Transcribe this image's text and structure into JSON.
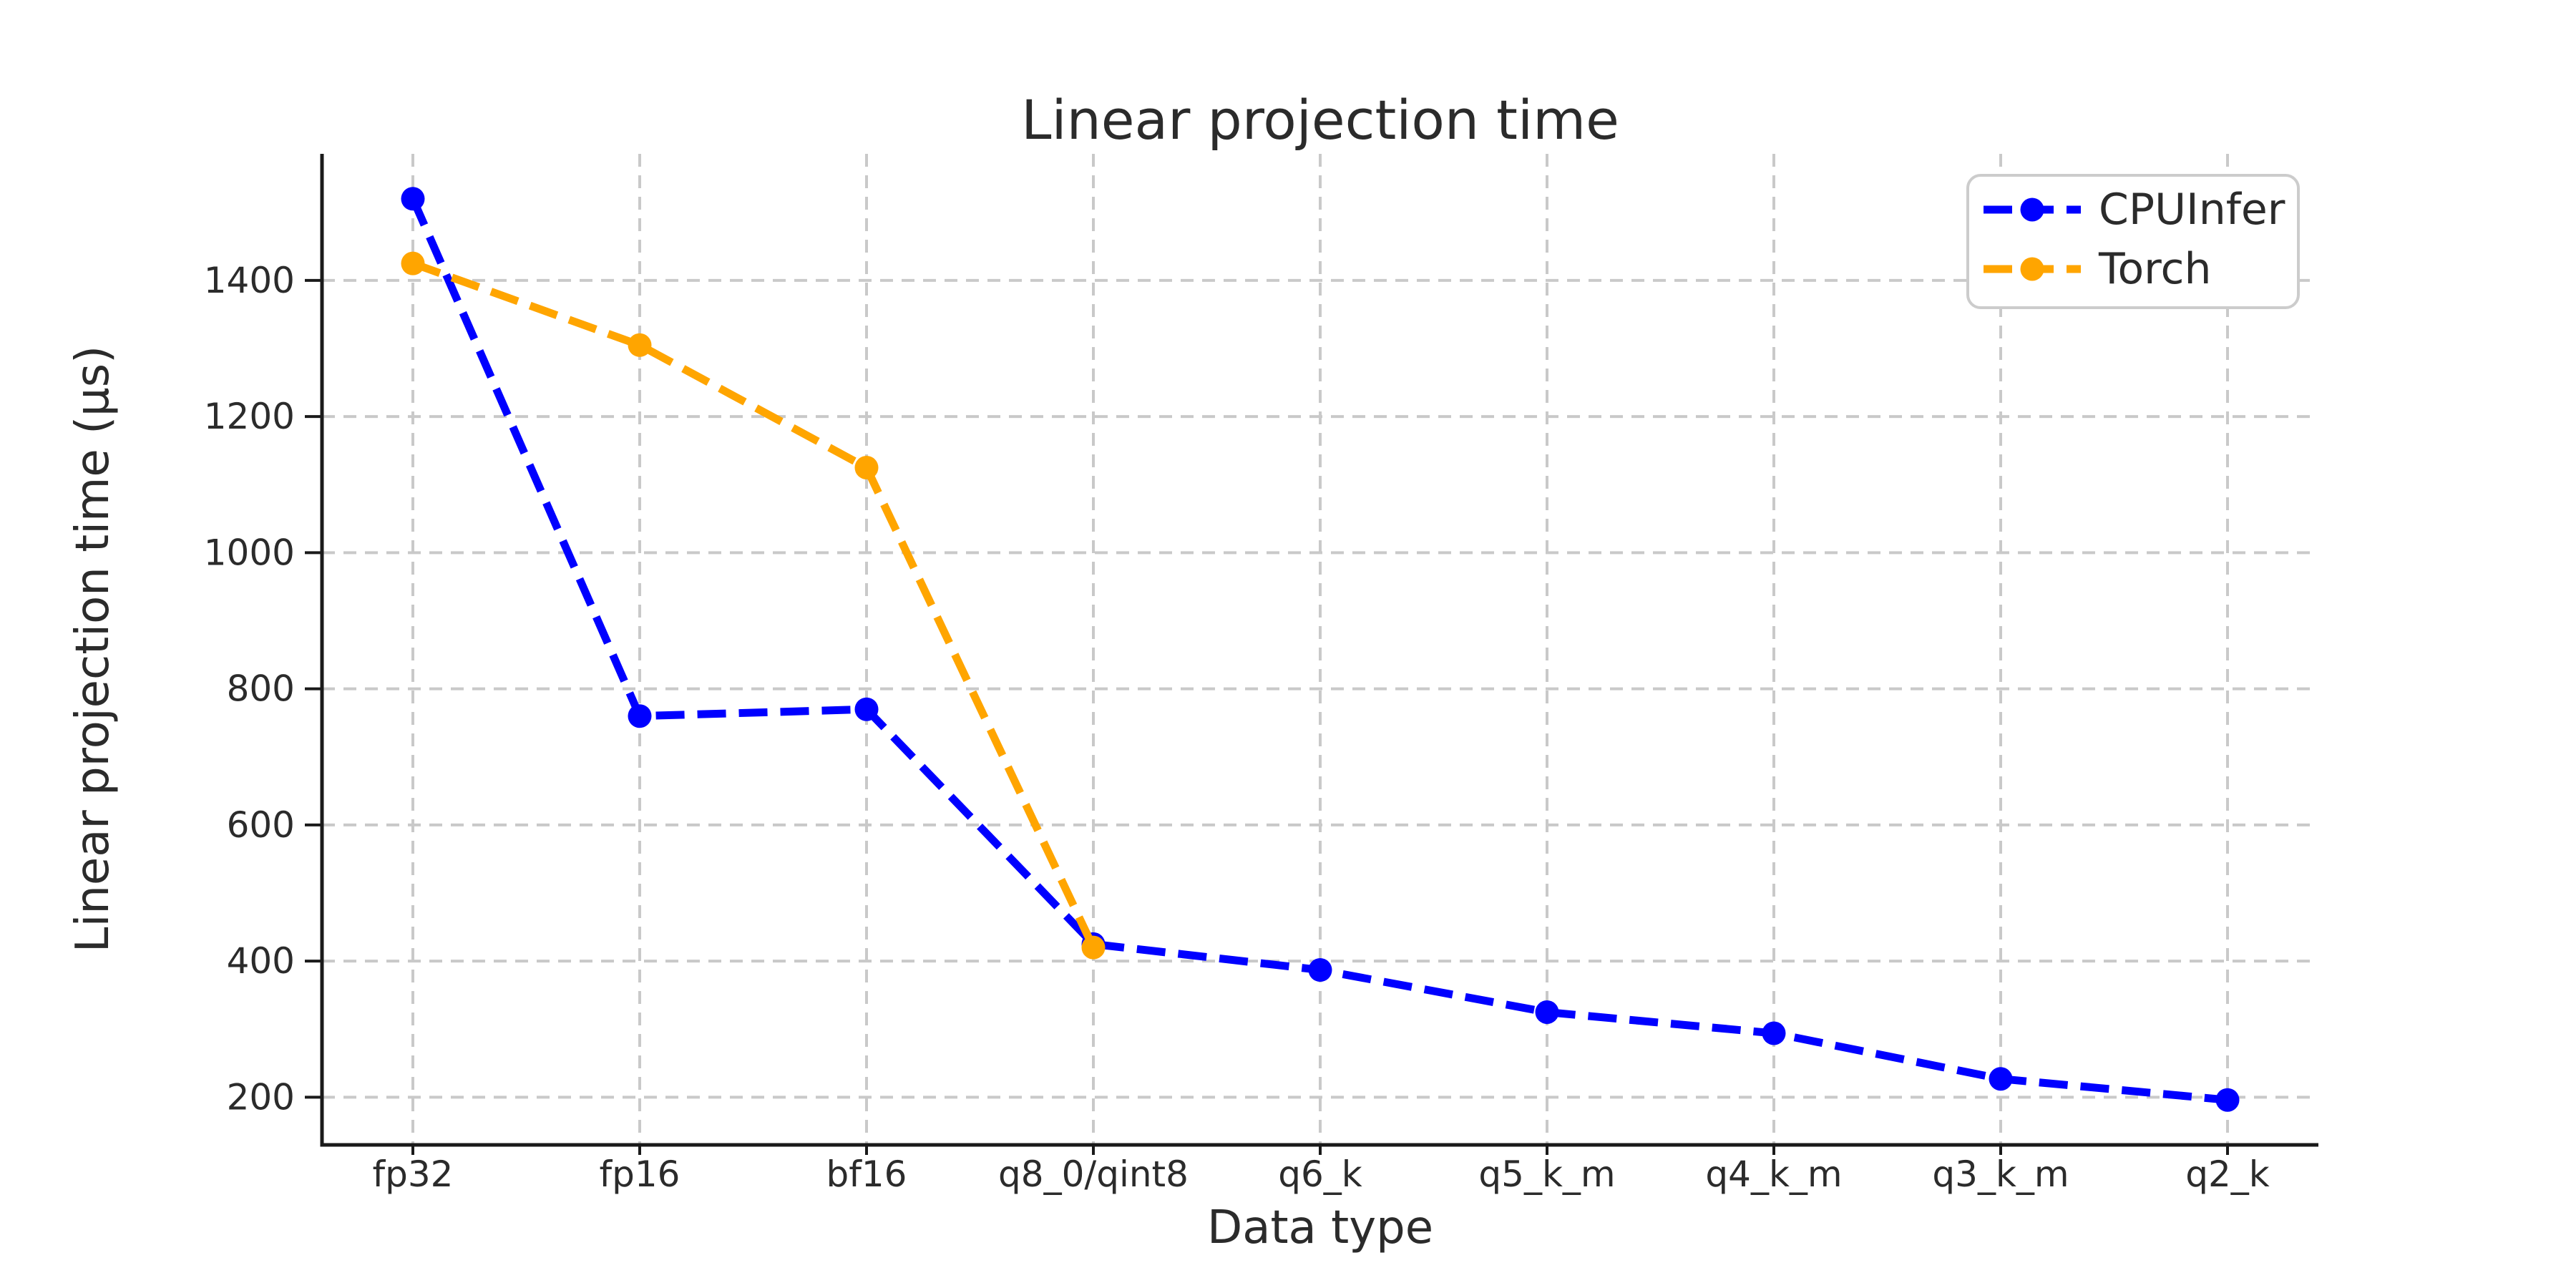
{
  "chart_data": {
    "type": "line",
    "title": "Linear projection time",
    "xlabel": "Data type",
    "ylabel": "Linear projection time (µs)",
    "categories": [
      "fp32",
      "fp16",
      "bf16",
      "q8_0/qint8",
      "q6_k",
      "q5_k_m",
      "q4_k_m",
      "q3_k_m",
      "q2_k"
    ],
    "series": [
      {
        "name": "CPUInfer",
        "color": "#0000ff",
        "values": [
          1520,
          760,
          770,
          425,
          387,
          325,
          294,
          227,
          196
        ]
      },
      {
        "name": "Torch",
        "color": "#ffa500",
        "values": [
          1425,
          1305,
          1125,
          420
        ]
      }
    ],
    "yticks": [
      200,
      400,
      600,
      800,
      1000,
      1200,
      1400
    ],
    "ylim": [
      130,
      1586
    ],
    "grid": true,
    "grid_style": "dashed",
    "line_style": "dashed",
    "marker": "circle",
    "legend": {
      "position": "upper right",
      "labels": [
        "CPUInfer",
        "Torch"
      ]
    },
    "style": {
      "background": "#ffffff",
      "grid_color": "#c9c9c9",
      "spine_color": "#1a1a1a",
      "tick_color": "#1a1a1a",
      "text_color": "#2b2b2b",
      "legend_border_color": "#cccccc"
    }
  }
}
